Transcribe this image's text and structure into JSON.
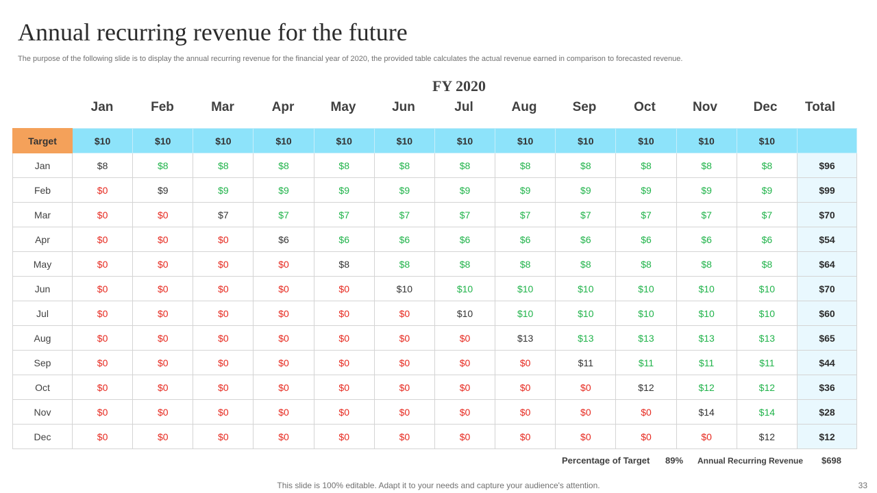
{
  "title": "Annual recurring revenue for the future",
  "subtitle": "The purpose of the following slide is to display the annual recurring revenue for the financial year of 2020, the provided table calculates the actual revenue earned in comparison to forecasted revenue.",
  "fy_label": "FY 2020",
  "month_headers": [
    "Jan",
    "Feb",
    "Mar",
    "Apr",
    "May",
    "Jun",
    "Jul",
    "Aug",
    "Sep",
    "Oct",
    "Nov",
    "Dec"
  ],
  "total_header": "Total",
  "target": {
    "label": "Target",
    "values": [
      "$10",
      "$10",
      "$10",
      "$10",
      "$10",
      "$10",
      "$10",
      "$10",
      "$10",
      "$10",
      "$10",
      "$10"
    ],
    "total": ""
  },
  "rows": [
    {
      "label": "Jan",
      "values": [
        "$8",
        "$8",
        "$8",
        "$8",
        "$8",
        "$8",
        "$8",
        "$8",
        "$8",
        "$8",
        "$8",
        "$8"
      ],
      "total": "$96"
    },
    {
      "label": "Feb",
      "values": [
        "$0",
        "$9",
        "$9",
        "$9",
        "$9",
        "$9",
        "$9",
        "$9",
        "$9",
        "$9",
        "$9",
        "$9"
      ],
      "total": "$99"
    },
    {
      "label": "Mar",
      "values": [
        "$0",
        "$0",
        "$7",
        "$7",
        "$7",
        "$7",
        "$7",
        "$7",
        "$7",
        "$7",
        "$7",
        "$7"
      ],
      "total": "$70"
    },
    {
      "label": "Apr",
      "values": [
        "$0",
        "$0",
        "$0",
        "$6",
        "$6",
        "$6",
        "$6",
        "$6",
        "$6",
        "$6",
        "$6",
        "$6"
      ],
      "total": "$54"
    },
    {
      "label": "May",
      "values": [
        "$0",
        "$0",
        "$0",
        "$0",
        "$8",
        "$8",
        "$8",
        "$8",
        "$8",
        "$8",
        "$8",
        "$8"
      ],
      "total": "$64"
    },
    {
      "label": "Jun",
      "values": [
        "$0",
        "$0",
        "$0",
        "$0",
        "$0",
        "$10",
        "$10",
        "$10",
        "$10",
        "$10",
        "$10",
        "$10"
      ],
      "total": "$70"
    },
    {
      "label": "Jul",
      "values": [
        "$0",
        "$0",
        "$0",
        "$0",
        "$0",
        "$0",
        "$10",
        "$10",
        "$10",
        "$10",
        "$10",
        "$10"
      ],
      "total": "$60"
    },
    {
      "label": "Aug",
      "values": [
        "$0",
        "$0",
        "$0",
        "$0",
        "$0",
        "$0",
        "$0",
        "$13",
        "$13",
        "$13",
        "$13",
        "$13"
      ],
      "total": "$65"
    },
    {
      "label": "Sep",
      "values": [
        "$0",
        "$0",
        "$0",
        "$0",
        "$0",
        "$0",
        "$0",
        "$0",
        "$11",
        "$11",
        "$11",
        "$11"
      ],
      "total": "$44"
    },
    {
      "label": "Oct",
      "values": [
        "$0",
        "$0",
        "$0",
        "$0",
        "$0",
        "$0",
        "$0",
        "$0",
        "$0",
        "$12",
        "$12",
        "$12"
      ],
      "total": "$36"
    },
    {
      "label": "Nov",
      "values": [
        "$0",
        "$0",
        "$0",
        "$0",
        "$0",
        "$0",
        "$0",
        "$0",
        "$0",
        "$0",
        "$14",
        "$14"
      ],
      "total": "$28"
    },
    {
      "label": "Dec",
      "values": [
        "$0",
        "$0",
        "$0",
        "$0",
        "$0",
        "$0",
        "$0",
        "$0",
        "$0",
        "$0",
        "$0",
        "$12"
      ],
      "total": "$12"
    }
  ],
  "colors": {
    "zero": "#e6281e",
    "recurring": "#20b34a",
    "first": "#333333",
    "target_label_bg": "#f4a15a",
    "target_row_bg": "#8de3fa",
    "total_bg": "#e9f8fe"
  },
  "summary": {
    "pct_label": "Percentage of Target",
    "pct_value": "89%",
    "arr_label": "Annual Recurring Revenue",
    "arr_value": "$698"
  },
  "footer": "This slide is 100% editable. Adapt it to your needs and capture your audience's attention.",
  "page_number": "33"
}
